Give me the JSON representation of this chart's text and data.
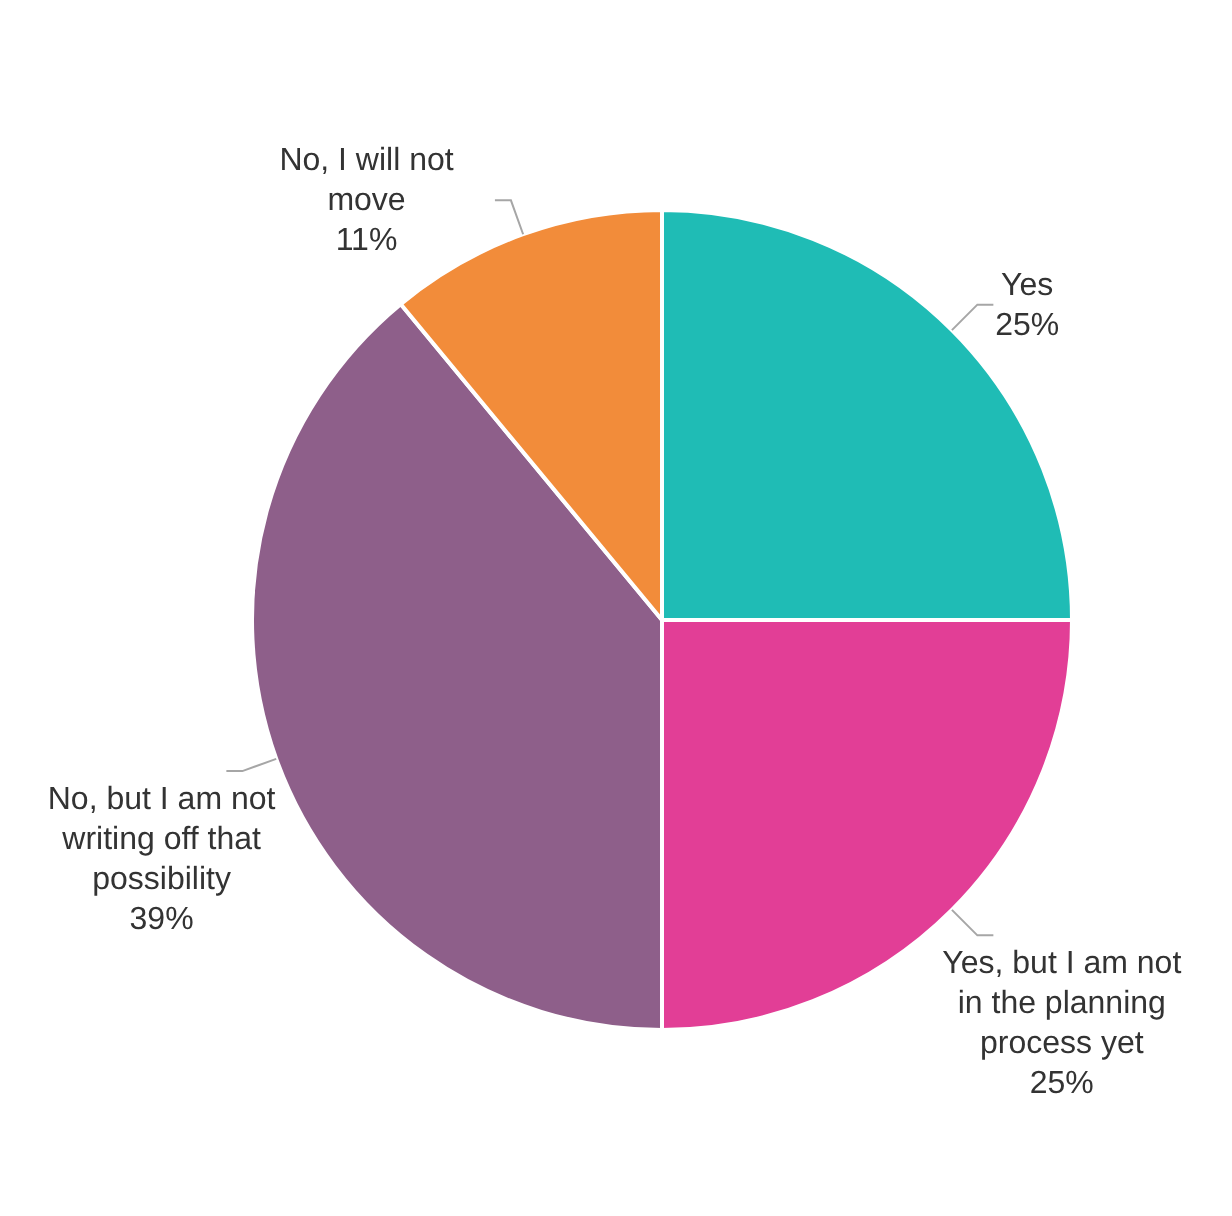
{
  "chart_data": {
    "type": "pie",
    "categories": [
      "Yes",
      "Yes, but I am not in the planning process yet",
      "No, but I am not writing off that possibility",
      "No, I will not move"
    ],
    "values": [
      25,
      25,
      39,
      11
    ],
    "colors": [
      "#1fbcb5",
      "#e23e96",
      "#8e5f8a",
      "#f28c3a"
    ],
    "value_labels": [
      "25%",
      "25%",
      "39%",
      "11%"
    ]
  }
}
